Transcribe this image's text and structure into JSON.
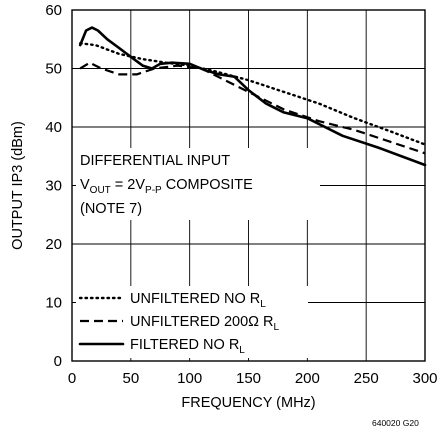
{
  "chart_data": {
    "type": "line",
    "xlabel": "FREQUENCY (MHz)",
    "ylabel": "OUTPUT IP3 (dBm)",
    "xlim": [
      0,
      300
    ],
    "ylim": [
      0,
      60
    ],
    "xticks": [
      "0",
      "50",
      "100",
      "150",
      "200",
      "250",
      "300"
    ],
    "yticks": [
      "0",
      "10",
      "20",
      "30",
      "40",
      "50",
      "60"
    ],
    "grid": true,
    "legend_position": "bottom-left",
    "annotation": {
      "line1": "DIFFERENTIAL INPUT",
      "line2_main": "V",
      "line2_sub1": "OUT",
      "line2_mid": " = 2V",
      "line2_sub2": "P-P",
      "line2_tail": " COMPOSITE",
      "line3": "(NOTE 7)"
    },
    "figure_id": "640020 G20",
    "series": [
      {
        "name": "UNFILTERED NO R",
        "name_sub": "L",
        "style": "dotted",
        "x": [
          7,
          20,
          40,
          60,
          80,
          100,
          120,
          150,
          180,
          210,
          240,
          270,
          300
        ],
        "y": [
          54.3,
          54,
          52.5,
          51.6,
          51,
          50.5,
          49.6,
          48,
          46,
          44,
          41.5,
          39.3,
          37
        ]
      },
      {
        "name": "UNFILTERED 200Ω R",
        "name_sub": "L",
        "style": "dashed",
        "x": [
          7,
          15,
          25,
          40,
          55,
          70,
          90,
          110,
          130,
          150,
          180,
          210,
          240,
          270,
          300
        ],
        "y": [
          50,
          51,
          50,
          49,
          49,
          50,
          50.5,
          50,
          48,
          46,
          43,
          41,
          39.5,
          37.5,
          35.5
        ]
      },
      {
        "name": "FILTERED NO R",
        "name_sub": "L",
        "style": "solid",
        "x": [
          7,
          12,
          17,
          22,
          30,
          40,
          50,
          60,
          68,
          75,
          85,
          100,
          112,
          125,
          138,
          150,
          165,
          180,
          200,
          230,
          260,
          300
        ],
        "y": [
          54,
          56.5,
          57,
          56.5,
          55,
          53.5,
          52,
          50.5,
          50,
          50.8,
          51,
          50.8,
          49.8,
          49,
          48.6,
          46.3,
          44,
          42.5,
          41.5,
          38.5,
          36.5,
          33.5
        ]
      }
    ]
  }
}
